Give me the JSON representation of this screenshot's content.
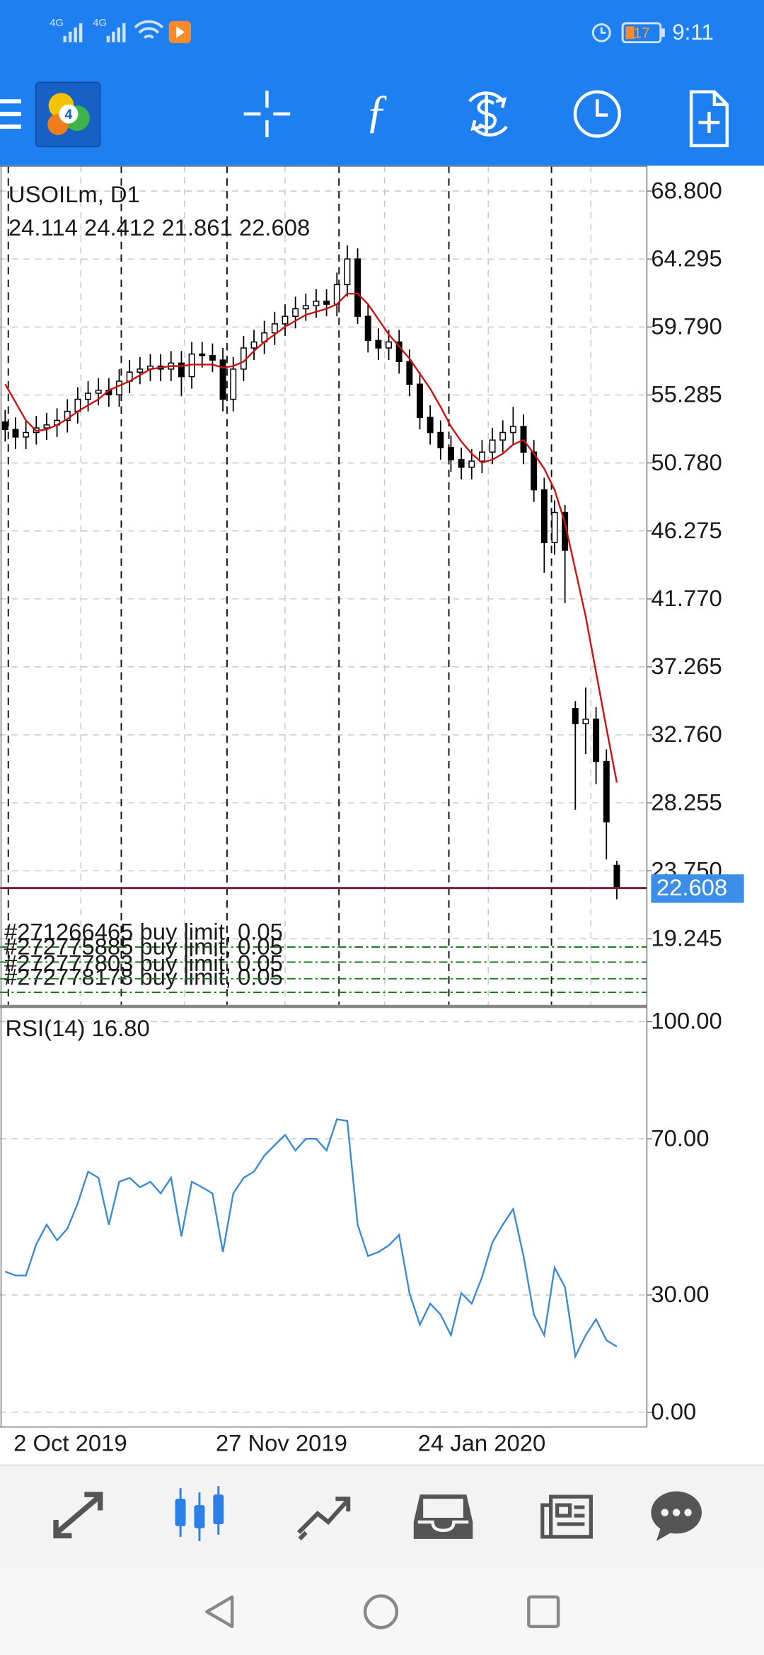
{
  "status_bar": {
    "network_1": "4G",
    "network_2": "4G",
    "battery": "17",
    "time": "9:11"
  },
  "chart_data": [
    {
      "type": "candlestick",
      "title": "USOILm, D1",
      "open": [
        53.5,
        53.0,
        52.5,
        52.8,
        53.1,
        53.3,
        53.6,
        54.2,
        55.0,
        55.4,
        55.6,
        55.3,
        56.2,
        56.8,
        57.0,
        57.2,
        57.0,
        57.4,
        56.5,
        58.0,
        57.9,
        57.6,
        55.0,
        57.0,
        58.4,
        58.8,
        59.4,
        60.0,
        60.5,
        61.0,
        61.2,
        61.5,
        61.3,
        62.6,
        64.3,
        60.5,
        58.9,
        58.4,
        58.8,
        57.5,
        56.0,
        53.8,
        52.8,
        51.8,
        51.0,
        50.5,
        50.9,
        51.5,
        52.3,
        52.8,
        53.2,
        51.5,
        49.0,
        45.5,
        47.5,
        34.5,
        33.5,
        33.8,
        31.0,
        24.114
      ],
      "high": [
        54.3,
        53.8,
        53.6,
        53.9,
        54.1,
        54.4,
        55.0,
        55.8,
        56.2,
        56.4,
        56.4,
        57.0,
        57.6,
        57.8,
        58.0,
        58.0,
        58.2,
        58.2,
        58.8,
        58.8,
        58.7,
        58.4,
        57.8,
        59.2,
        59.6,
        60.2,
        60.8,
        61.3,
        61.8,
        62.0,
        62.3,
        62.3,
        63.4,
        65.2,
        65.0,
        61.3,
        59.7,
        59.6,
        59.6,
        58.3,
        56.8,
        54.6,
        53.6,
        52.6,
        51.8,
        51.7,
        52.3,
        53.1,
        53.6,
        54.5,
        54.0,
        52.3,
        49.8,
        48.3,
        48.0,
        35.0,
        35.9,
        34.6,
        31.8,
        24.412
      ],
      "low": [
        52.2,
        51.7,
        51.7,
        52.0,
        52.3,
        52.5,
        52.8,
        53.4,
        54.2,
        54.6,
        54.5,
        54.5,
        55.4,
        56.0,
        56.2,
        56.2,
        56.2,
        55.2,
        55.7,
        57.1,
        56.8,
        54.2,
        54.2,
        56.2,
        57.6,
        58.0,
        58.6,
        59.2,
        59.7,
        60.2,
        60.4,
        60.5,
        60.5,
        61.8,
        60.0,
        58.1,
        57.6,
        57.6,
        56.7,
        55.2,
        53.0,
        52.0,
        51.0,
        50.2,
        49.7,
        49.7,
        50.1,
        50.7,
        51.5,
        52.0,
        50.7,
        48.2,
        43.5,
        44.7,
        41.5,
        27.8,
        31.5,
        29.5,
        24.5,
        21.861
      ],
      "close": [
        53.0,
        52.5,
        52.8,
        53.1,
        53.3,
        53.6,
        54.2,
        55.0,
        55.4,
        55.6,
        55.3,
        56.2,
        56.8,
        57.0,
        57.2,
        57.0,
        57.4,
        56.5,
        58.0,
        57.9,
        57.6,
        55.0,
        57.0,
        58.4,
        58.8,
        59.4,
        60.0,
        60.5,
        61.0,
        61.2,
        61.5,
        61.3,
        62.6,
        64.3,
        60.5,
        58.9,
        58.4,
        58.8,
        57.5,
        56.0,
        53.8,
        52.8,
        51.8,
        51.0,
        50.5,
        50.9,
        51.5,
        52.3,
        52.8,
        53.2,
        51.5,
        49.0,
        45.5,
        47.5,
        45.0,
        33.5,
        33.8,
        31.0,
        27.0,
        22.608
      ],
      "up_color": "#ffffff",
      "down_color": "#000000",
      "wick_color": "#000000",
      "moving_average": {
        "color": "#cc1111",
        "values": [
          56.0,
          54.8,
          53.6,
          52.9,
          53.0,
          53.3,
          53.7,
          54.2,
          54.6,
          55.0,
          55.6,
          55.9,
          56.2,
          56.6,
          57.0,
          57.1,
          57.2,
          57.2,
          57.3,
          57.3,
          57.3,
          57.1,
          57.2,
          57.5,
          58.2,
          58.8,
          59.3,
          59.8,
          60.2,
          60.6,
          60.8,
          61.0,
          61.3,
          62.0,
          62.0,
          61.3,
          60.3,
          59.3,
          58.5,
          57.7,
          56.7,
          55.7,
          54.5,
          53.2,
          52.2,
          51.4,
          50.8,
          51.0,
          51.4,
          52.0,
          52.3,
          51.4,
          50.4,
          49.0,
          46.8,
          43.7,
          40.6,
          36.9,
          33.2,
          29.6
        ]
      },
      "last_price_line_color": "#7a1f3d",
      "last_price_tag_color": "#3d8ee8",
      "orders": [
        {
          "label": "#271266465 buy limit, 0.05",
          "price": 18.7
        },
        {
          "label": "#272775885 buy limit, 0.05",
          "price": 17.7
        },
        {
          "label": "#272778178 buy limit, 0.05",
          "price": 15.7
        },
        {
          "label": "#272777803 buy limit, 0.05",
          "price": 16.6
        }
      ],
      "order_color": "#1e7b1e",
      "xlim": [
        -0.5,
        61.9
      ],
      "ylim": [
        14.87,
        70.48
      ],
      "yticks": [
        {
          "value": 68.8,
          "label": "68.800"
        },
        64.295,
        {
          "value": 59.79,
          "label": "59.790"
        },
        55.285,
        {
          "value": 50.78,
          "label": "50.780"
        },
        46.275,
        {
          "value": 41.77,
          "label": "41.770"
        },
        37.265,
        {
          "value": 32.76,
          "label": "32.760"
        },
        28.255,
        {
          "value": 23.75,
          "label": "23.750"
        },
        19.245
      ],
      "period_separators": [
        0.3,
        11.2,
        21.4,
        32.2,
        42.8,
        52.7
      ],
      "xgrid": [
        7.3,
        17.3,
        27,
        36.6,
        46.6,
        56.5
      ],
      "grid": true
    },
    {
      "type": "line",
      "title": "RSI(14) 16.80",
      "color": "#3a8ad6",
      "values": [
        36,
        35,
        35,
        43,
        48,
        44,
        47,
        53.5,
        61.6,
        60,
        48,
        59,
        60,
        57.6,
        59,
        56,
        60,
        45,
        59,
        57.6,
        56,
        41,
        56,
        60,
        61.6,
        65.7,
        68.4,
        71,
        67,
        70,
        70,
        67,
        75,
        74.6,
        48,
        40,
        41,
        42.7,
        45.4,
        30.5,
        22.4,
        27.8,
        25,
        19.7,
        30.5,
        27.8,
        34.6,
        43.5,
        48,
        52,
        40,
        25,
        19.7,
        37,
        32,
        14.3,
        19.7,
        23.8,
        18.4,
        16.8
      ],
      "xlim": [
        -0.5,
        61.9
      ],
      "ylim": [
        -3.8,
        103.5
      ],
      "yticks": [
        {
          "value": 100,
          "label": "100.00"
        },
        {
          "value": 70,
          "label": "70.00"
        },
        {
          "value": 30,
          "label": "30.00"
        },
        {
          "value": 0,
          "label": "0.00"
        }
      ],
      "xticks": [
        {
          "value": 0.5,
          "label": "2 Oct 2019"
        },
        {
          "value": 20,
          "label": "27 Nov 2019"
        },
        {
          "value": 39.5,
          "label": "24 Jan 2020"
        }
      ],
      "grid": true
    }
  ]
}
